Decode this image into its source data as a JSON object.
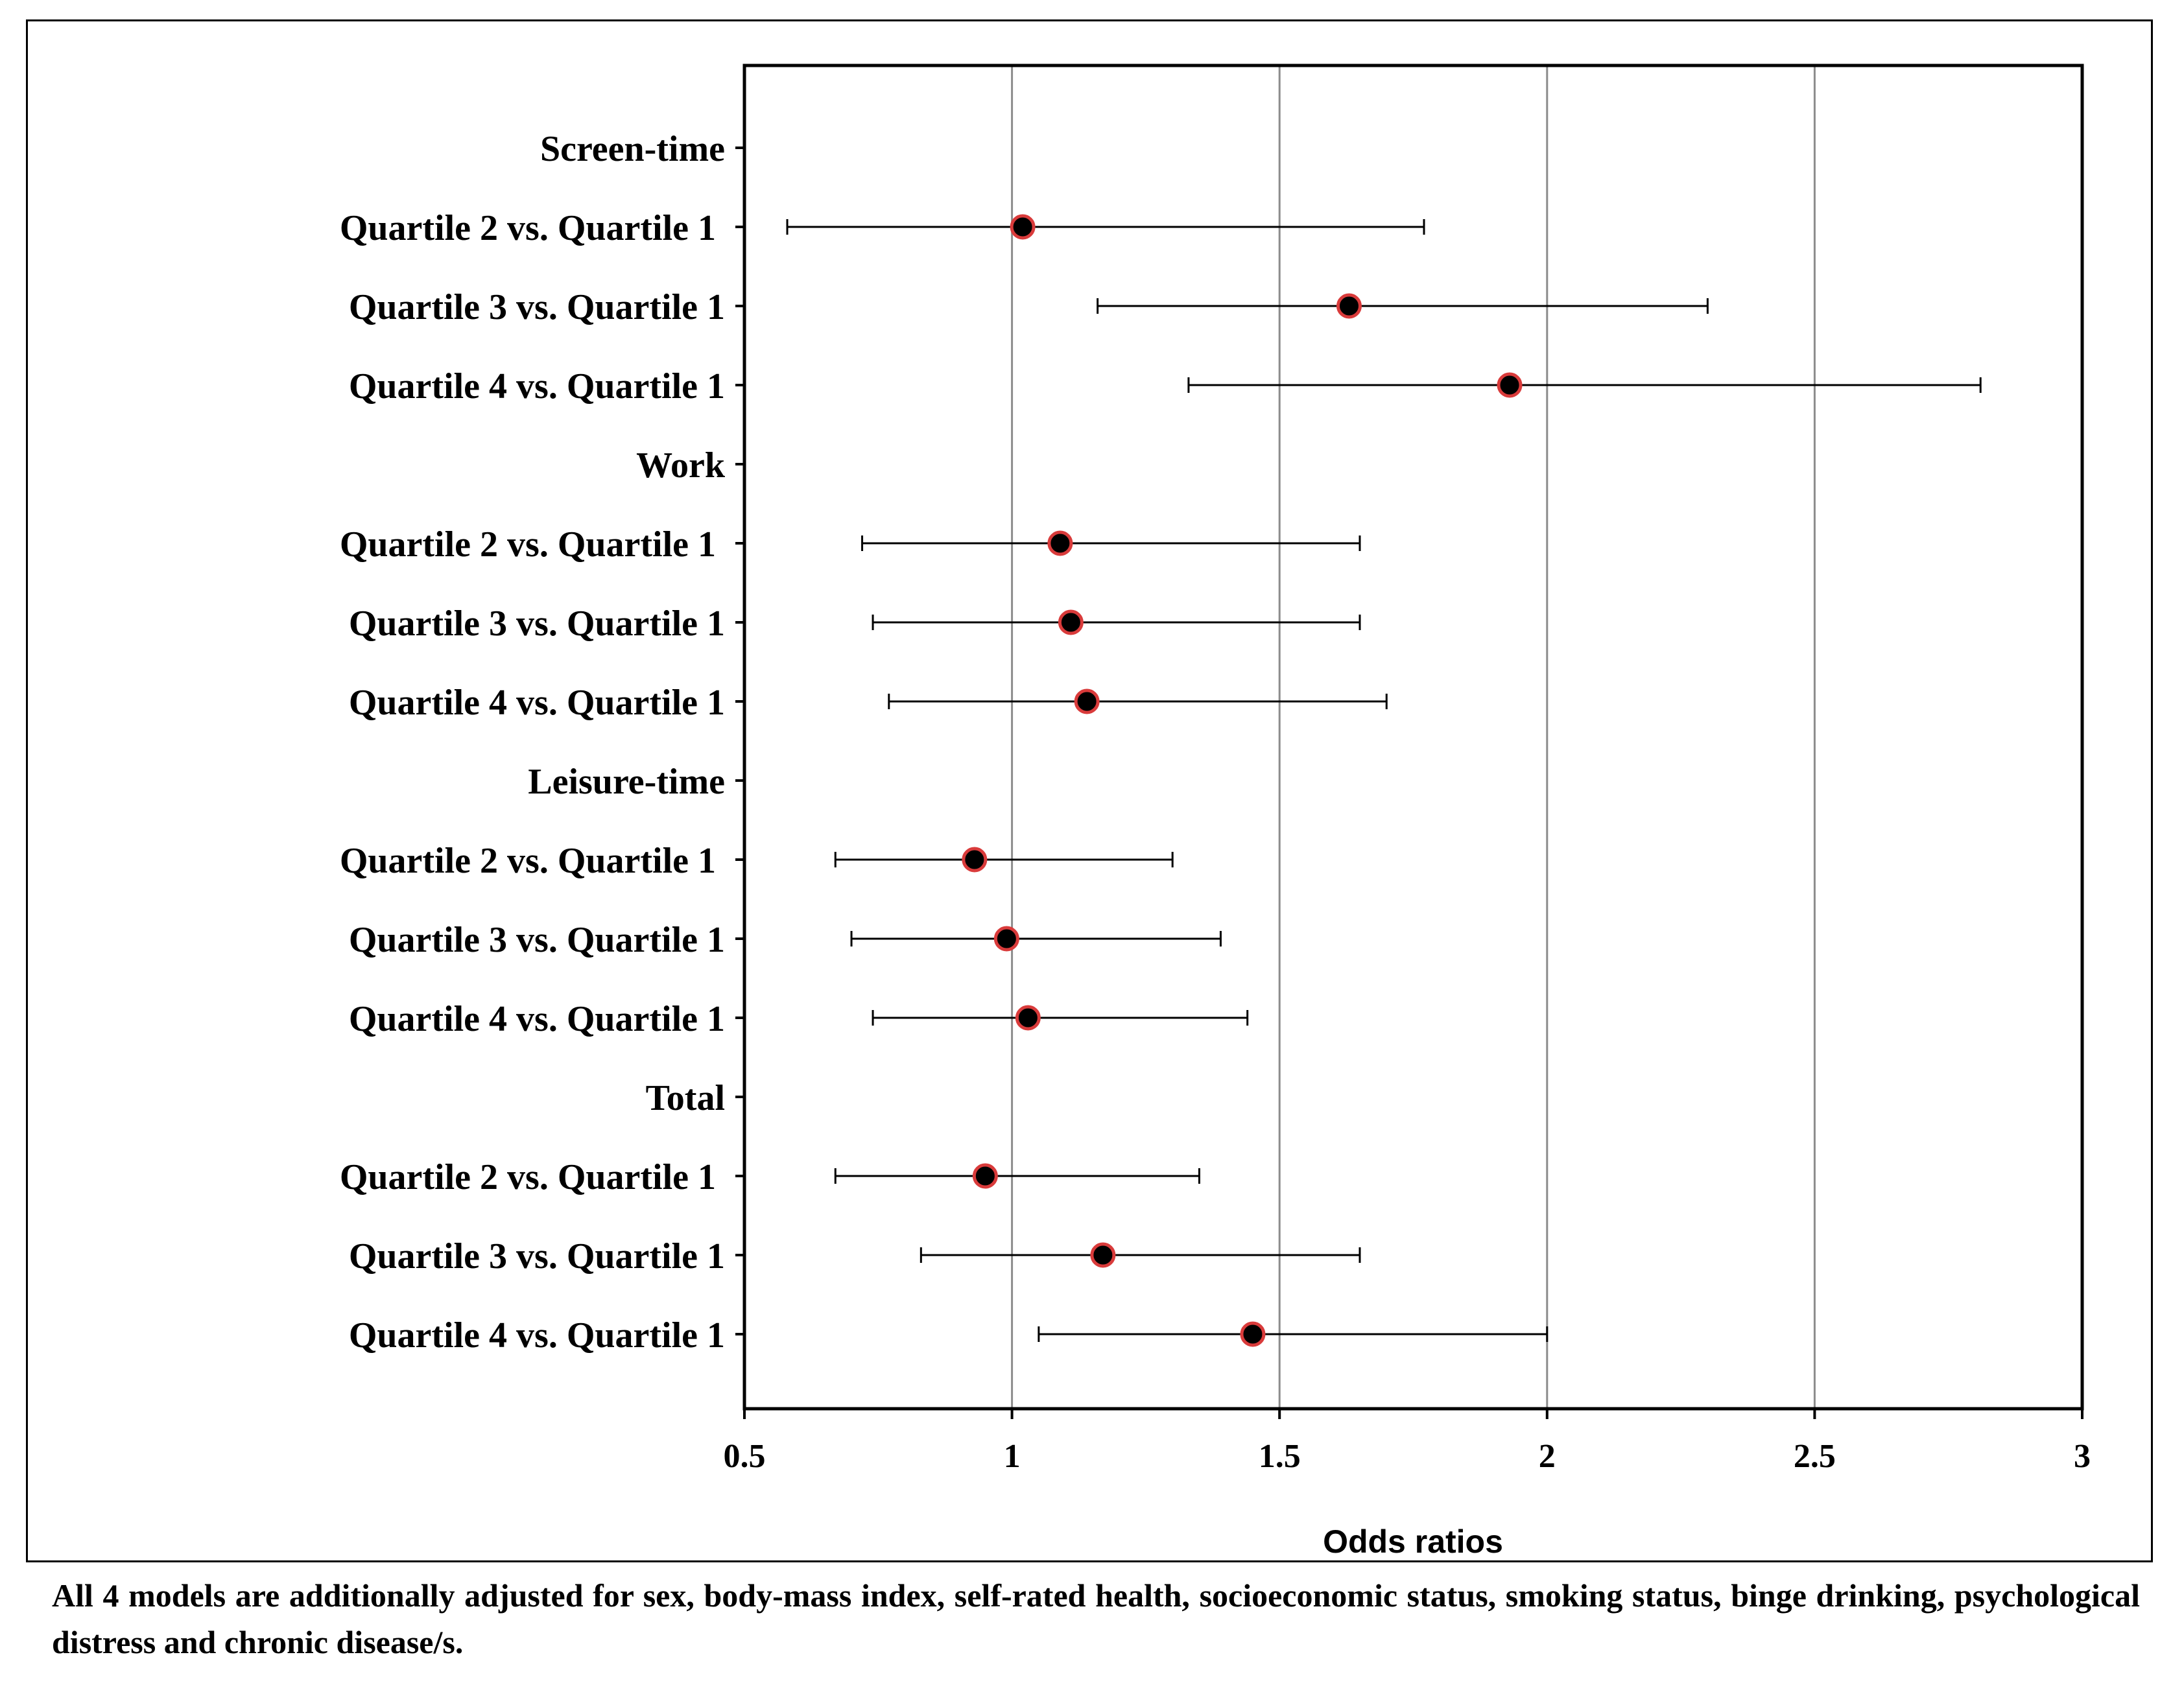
{
  "chart_data": {
    "type": "forest",
    "xlabel": "Odds ratios",
    "xlim": [
      0.5,
      3
    ],
    "xticks": [
      "0.5",
      "1",
      "1.5",
      "2",
      "2.5",
      "3"
    ],
    "gridlines": [
      1,
      1.5,
      2,
      2.5
    ],
    "rows": [
      {
        "label": "Screen-time",
        "header": true
      },
      {
        "label": "Quartile 2 vs. Quartile 1",
        "or": 1.02,
        "lo": 0.58,
        "hi": 1.77
      },
      {
        "label": "Quartile 3 vs. Quartile 1",
        "or": 1.63,
        "lo": 1.16,
        "hi": 2.3
      },
      {
        "label": "Quartile 4 vs. Quartile 1",
        "or": 1.93,
        "lo": 1.33,
        "hi": 2.81
      },
      {
        "label": "Work",
        "header": true
      },
      {
        "label": "Quartile 2 vs. Quartile 1",
        "or": 1.09,
        "lo": 0.72,
        "hi": 1.65
      },
      {
        "label": "Quartile 3 vs. Quartile 1",
        "or": 1.11,
        "lo": 0.74,
        "hi": 1.65
      },
      {
        "label": "Quartile 4 vs. Quartile 1",
        "or": 1.14,
        "lo": 0.77,
        "hi": 1.7
      },
      {
        "label": "Leisure-time",
        "header": true
      },
      {
        "label": "Quartile 2 vs. Quartile 1",
        "or": 0.93,
        "lo": 0.67,
        "hi": 1.3
      },
      {
        "label": "Quartile 3 vs. Quartile 1",
        "or": 0.99,
        "lo": 0.7,
        "hi": 1.39
      },
      {
        "label": "Quartile 4 vs. Quartile 1",
        "or": 1.03,
        "lo": 0.74,
        "hi": 1.44
      },
      {
        "label": "Total",
        "header": true
      },
      {
        "label": "Quartile 2 vs. Quartile 1",
        "or": 0.95,
        "lo": 0.67,
        "hi": 1.35
      },
      {
        "label": "Quartile 3 vs. Quartile 1",
        "or": 1.17,
        "lo": 0.83,
        "hi": 1.65
      },
      {
        "label": "Quartile 4 vs. Quartile 1",
        "or": 1.45,
        "lo": 1.05,
        "hi": 2.0
      }
    ],
    "marker_fill": "#000000",
    "marker_edge": "#d93b3b"
  },
  "caption": "All 4 models are additionally adjusted for sex, body-mass index, self-rated health, socioeconomic status, smoking status, binge drinking, psychological distress and chronic disease/s."
}
